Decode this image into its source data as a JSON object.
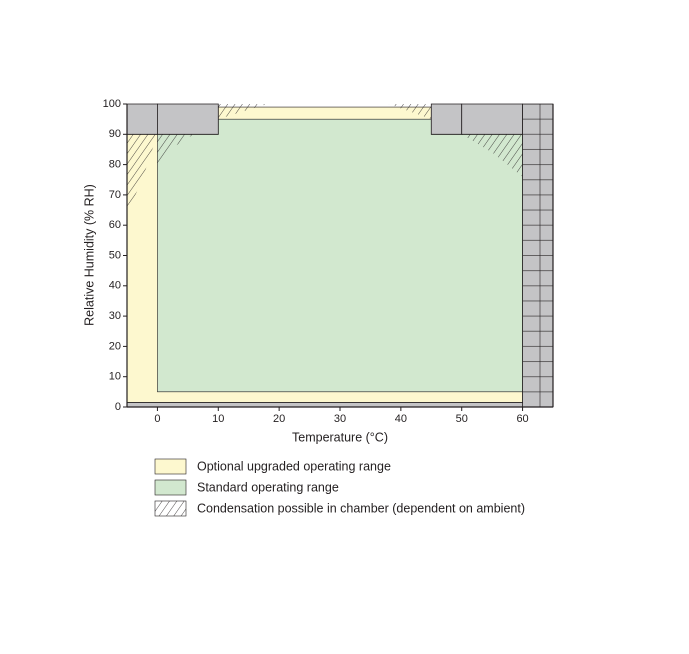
{
  "chart_data": {
    "type": "region",
    "x_label": "Temperature (°C)",
    "y_label": "Relative Humidity (% RH)",
    "xlim": [
      -5,
      65
    ],
    "ylim": [
      0,
      100
    ],
    "xticks": [
      0,
      10,
      20,
      30,
      40,
      50,
      60
    ],
    "yticks": [
      0,
      10,
      20,
      30,
      40,
      50,
      60,
      70,
      80,
      90,
      100
    ],
    "series": [
      {
        "name": "Optional upgraded operating range",
        "color": "#fdf8cf",
        "polygons": [
          [
            [
              -5,
              1.5
            ],
            [
              60,
              1.5
            ],
            [
              60,
              90
            ],
            [
              45,
              90
            ],
            [
              45,
              99
            ],
            [
              10,
              99
            ],
            [
              10,
              90
            ],
            [
              -5,
              90
            ]
          ]
        ]
      },
      {
        "name": "Standard operating range",
        "color": "#d2e8cf",
        "polygons": [
          [
            [
              0,
              5
            ],
            [
              60,
              5
            ],
            [
              60,
              90
            ],
            [
              45,
              90
            ],
            [
              45,
              95
            ],
            [
              10,
              95
            ],
            [
              10,
              90
            ],
            [
              0,
              90
            ]
          ]
        ]
      },
      {
        "name": "Condensation possible in chamber (dependent on ambient)",
        "color": "#231f20",
        "polygons": [
          [
            [
              -5,
              90
            ],
            [
              0,
              90
            ],
            [
              -2,
              78
            ],
            [
              -5,
              63
            ]
          ],
          [
            [
              0,
              90
            ],
            [
              6,
              90
            ],
            [
              2,
              85
            ],
            [
              0,
              79
            ]
          ],
          [
            [
              10,
              100
            ],
            [
              18,
              100
            ],
            [
              10,
              95
            ]
          ],
          [
            [
              38,
              100
            ],
            [
              45,
              100
            ],
            [
              45,
              95
            ]
          ],
          [
            [
              50,
              90
            ],
            [
              60,
              90
            ],
            [
              60,
              76
            ],
            [
              55,
              84
            ]
          ]
        ]
      },
      {
        "color": "#c4c4c6",
        "polygons": [
          [
            [
              -5,
              90
            ],
            [
              0,
              90
            ],
            [
              0,
              100
            ],
            [
              -5,
              100
            ]
          ],
          [
            [
              0,
              90
            ],
            [
              10,
              90
            ],
            [
              10,
              100
            ],
            [
              0,
              100
            ]
          ],
          [
            [
              45,
              90
            ],
            [
              50,
              90
            ],
            [
              50,
              100
            ],
            [
              45,
              100
            ]
          ],
          [
            [
              50,
              90
            ],
            [
              60,
              90
            ],
            [
              60,
              100
            ],
            [
              50,
              100
            ]
          ],
          [
            [
              60,
              0
            ],
            [
              65,
              0
            ],
            [
              65,
              100
            ],
            [
              60,
              100
            ]
          ],
          [
            [
              -5,
              0
            ],
            [
              60,
              0
            ],
            [
              60,
              1.5
            ],
            [
              -5,
              1.5
            ]
          ]
        ]
      }
    ]
  }
}
